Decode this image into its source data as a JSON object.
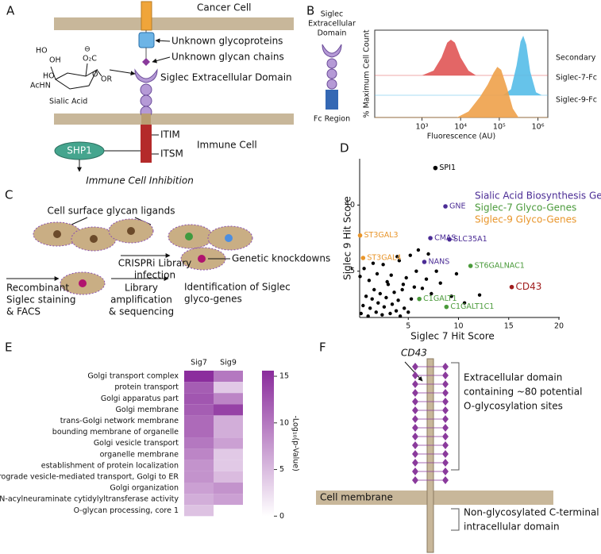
{
  "panel_labels": [
    "A",
    "B",
    "C",
    "D",
    "E",
    "F"
  ],
  "panel_a": {
    "cancer_cell": "Cancer Cell",
    "unknown_glycoproteins": "Unknown glycoproteins",
    "unknown_glycan_chains": "Unknown glycan chains",
    "siglec_domain": "Siglec Extracellular Domain",
    "sialic_acid": "Sialic Acid",
    "structure": [
      "HO",
      "OH",
      "O",
      "O₂C",
      "OR",
      "HO",
      "AcHN",
      "⊖"
    ],
    "itim": "ITIM",
    "itsm": "ITSM",
    "immune_cell": "Immune Cell",
    "shp1": "SHP1",
    "inhibition": "Immune Cell Inhibition"
  },
  "panel_b": {
    "domain": [
      "Siglec",
      "Extracellular",
      "Domain"
    ],
    "fc_region": "Fc Region"
  },
  "panel_c": {
    "ligands": "Cell surface glycan ligands",
    "crispri": [
      "CRISPRi Library",
      "infection"
    ],
    "knockdowns": "Genetic knockdowns",
    "staining": [
      "Recombinant",
      "Siglec staining",
      "& FACS"
    ],
    "library": [
      "Library",
      "amplification",
      "& sequencing"
    ],
    "identification": [
      "Identification of Siglec",
      "glyco-genes"
    ]
  },
  "panel_f": {
    "protein": "CD43",
    "extracellular": [
      "Extracellular domain",
      "containing ~80 potential",
      "O-glycosylation sites"
    ],
    "membrane": "Cell membrane",
    "intracellular": [
      "Non-glycosylated C-terminal",
      "intracellular domain"
    ]
  },
  "chart_data": [
    {
      "type": "density",
      "xlabel": "Fluorescence (AU)",
      "ylabel": "% Maximum Cell Count",
      "log_x": true,
      "xlim": [
        60,
        1800000
      ],
      "xticks": [
        {
          "value": 1000,
          "label": "10³"
        },
        {
          "value": 10000,
          "label": "10⁴"
        },
        {
          "value": 100000,
          "label": "10⁵"
        },
        {
          "value": 1000000,
          "label": "10⁶"
        }
      ],
      "ylim": [
        0,
        100
      ],
      "series": [
        {
          "name": "Secondary",
          "color": "#e05555",
          "x": [
            1000,
            2000,
            3200,
            4500,
            5600,
            7100,
            10000,
            16000,
            25000
          ],
          "values": [
            0,
            8,
            30,
            55,
            60,
            55,
            30,
            8,
            0
          ]
        },
        {
          "name": "Siglec-7-Fc",
          "color": "#55bce8",
          "x": [
            126000,
            200000,
            280000,
            355000,
            417000,
            500000,
            630000,
            890000,
            1260000
          ],
          "values": [
            0,
            10,
            50,
            90,
            100,
            85,
            40,
            5,
            0
          ]
        },
        {
          "name": "Siglec-9-Fc",
          "color": "#eea14a",
          "x": [
            8000,
            16000,
            32000,
            50000,
            71000,
            89000,
            112000,
            158000,
            224000,
            316000
          ],
          "values": [
            0,
            10,
            35,
            55,
            75,
            85,
            80,
            50,
            15,
            0
          ]
        }
      ]
    },
    {
      "type": "scatter",
      "xlabel": "Siglec 7 Hit Score",
      "ylabel": "Siglec 9 Hit Score",
      "xlim": [
        0,
        20
      ],
      "ylim": [
        1.5,
        13.5
      ],
      "xticks": [
        5,
        10,
        15,
        20
      ],
      "yticks": [
        5,
        10
      ],
      "series": [
        {
          "color": "#000000",
          "x": [
            0.3,
            0.5,
            0.8,
            1.0,
            1.2,
            1.4,
            1.6,
            1.8,
            2.0,
            2.2,
            2.4,
            2.6,
            2.8,
            3.0,
            3.2,
            3.4,
            3.6,
            3.8,
            4.0,
            4.2,
            4.4,
            4.6,
            4.8,
            5.0,
            5.3,
            5.6,
            0.2,
            0.6,
            1.1,
            1.9,
            2.5,
            3.3,
            4.1,
            5.2,
            5.8,
            6.4,
            6.8,
            7.3,
            7.8,
            8.2,
            9.3,
            9.8,
            10.6,
            12.1,
            6.0,
            7.0,
            4.5,
            3.9,
            2.9,
            1.5
          ],
          "values": [
            1.8,
            2.4,
            3.1,
            1.6,
            2.2,
            2.9,
            3.6,
            1.9,
            2.6,
            3.3,
            1.7,
            2.3,
            3.0,
            4.0,
            1.8,
            2.5,
            3.4,
            2.0,
            2.8,
            1.6,
            3.6,
            2.2,
            4.5,
            1.9,
            2.9,
            3.8,
            4.6,
            5.2,
            4.3,
            4.8,
            5.5,
            4.7,
            5.8,
            6.2,
            5.0,
            3.7,
            4.4,
            3.3,
            5.0,
            4.1,
            3.1,
            4.8,
            2.6,
            3.2,
            6.6,
            6.3,
            4.0,
            6.1,
            4.2,
            5.6
          ]
        },
        {
          "color": "#000000",
          "labels": [
            "SPI1"
          ],
          "x": [
            7.7
          ],
          "values": [
            12.8
          ]
        },
        {
          "name": "Sialic Acid Biosynthesis Genes",
          "color": "#4b2c95",
          "labels": [
            "GNE",
            "CMAS",
            "SLC35A1",
            "NANS"
          ],
          "x": [
            8.7,
            7.2,
            9.1,
            6.6
          ],
          "values": [
            9.9,
            7.5,
            7.4,
            5.7
          ]
        },
        {
          "name": "Siglec-7 Glyco-Genes",
          "color": "#4a9a3a",
          "labels": [
            "ST6GALNAC1",
            "C1GALT1",
            "C1GALT1C1"
          ],
          "x": [
            11.2,
            6.1,
            8.8
          ],
          "values": [
            5.4,
            2.9,
            2.3
          ]
        },
        {
          "name": "Siglec-9 Glyco-Genes",
          "color": "#e8952a",
          "labels": [
            "ST3GAL3",
            "ST3GAL4"
          ],
          "x": [
            0.2,
            0.5
          ],
          "values": [
            7.7,
            6.0
          ]
        },
        {
          "color": "#a01d1d",
          "labels": [
            "CD43"
          ],
          "x": [
            15.3
          ],
          "values": [
            3.8
          ]
        }
      ]
    },
    {
      "type": "heatmap",
      "categories": [
        "Golgi transport complex",
        "protein transport",
        "Golgi apparatus part",
        "Golgi membrane",
        "trans-Golgi network membrane",
        "bounding membrane of organelle",
        "Golgi vesicle transport",
        "organelle membrane",
        "establishment of protein localization",
        "retrograde vesicle-mediated transport, Golgi to ER",
        "Golgi organization",
        "N-acylneuraminate cytidylyltransferase activity",
        "O-glycan processing, core 1"
      ],
      "series": [
        {
          "name": "Sig7",
          "values": [
            15.5,
            12,
            12.5,
            12,
            11,
            11,
            10,
            9,
            8,
            8,
            7,
            6,
            4.5
          ]
        },
        {
          "name": "Sig9",
          "values": [
            10,
            4,
            9,
            14,
            6,
            6,
            7,
            4,
            4,
            5,
            8,
            7,
            0
          ]
        }
      ],
      "clim": [
        0,
        15.6
      ],
      "cticks": [
        0,
        5,
        10,
        15
      ],
      "colors": [
        "#ffffff",
        "#8a2c9c"
      ],
      "colorbar_label": "-Log₁₀(p-Value)"
    }
  ]
}
